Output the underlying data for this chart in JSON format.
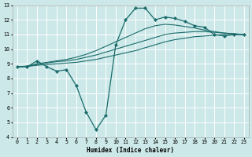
{
  "xlabel": "Humidex (Indice chaleur)",
  "bg_color": "#cce8e8",
  "grid_color": "#ffffff",
  "line_color": "#1a6b6b",
  "xlim": [
    -0.5,
    23.5
  ],
  "ylim": [
    4,
    13
  ],
  "xticks": [
    0,
    1,
    2,
    3,
    4,
    5,
    6,
    7,
    8,
    9,
    10,
    11,
    12,
    13,
    14,
    15,
    16,
    17,
    18,
    19,
    20,
    21,
    22,
    23
  ],
  "yticks": [
    4,
    5,
    6,
    7,
    8,
    9,
    10,
    11,
    12,
    13
  ],
  "line_main": {
    "x": [
      0,
      1,
      2,
      3,
      4,
      5,
      6,
      7,
      8,
      9,
      10,
      11,
      12,
      13,
      14,
      15,
      16,
      17,
      18,
      19,
      20,
      21,
      22,
      23
    ],
    "y": [
      8.8,
      8.8,
      9.2,
      8.8,
      8.5,
      8.6,
      7.5,
      5.7,
      4.5,
      5.5,
      10.3,
      12.0,
      12.8,
      12.8,
      12.0,
      12.2,
      12.1,
      11.9,
      11.6,
      11.5,
      11.0,
      10.9,
      11.0,
      11.0
    ]
  },
  "smooth_lines": [
    {
      "x": [
        0,
        1,
        2,
        3,
        4,
        5,
        6,
        7,
        8,
        9,
        10,
        11,
        12,
        13,
        14,
        15,
        16,
        17,
        18,
        19,
        20,
        21,
        22,
        23
      ],
      "y": [
        8.8,
        8.82,
        8.9,
        8.95,
        9.0,
        9.05,
        9.1,
        9.2,
        9.3,
        9.45,
        9.6,
        9.75,
        9.9,
        10.1,
        10.3,
        10.5,
        10.65,
        10.75,
        10.85,
        10.9,
        10.95,
        11.0,
        11.0,
        11.0
      ]
    },
    {
      "x": [
        0,
        1,
        2,
        3,
        4,
        5,
        6,
        7,
        8,
        9,
        10,
        11,
        12,
        13,
        14,
        15,
        16,
        17,
        18,
        19,
        20,
        21,
        22,
        23
      ],
      "y": [
        8.8,
        8.83,
        8.95,
        9.05,
        9.15,
        9.2,
        9.3,
        9.45,
        9.6,
        9.8,
        10.0,
        10.2,
        10.4,
        10.6,
        10.8,
        11.0,
        11.1,
        11.15,
        11.2,
        11.2,
        11.15,
        11.1,
        11.05,
        11.0
      ]
    },
    {
      "x": [
        0,
        1,
        2,
        3,
        4,
        5,
        6,
        7,
        8,
        9,
        10,
        11,
        12,
        13,
        14,
        15,
        16,
        17,
        18,
        19,
        20,
        21,
        22,
        23
      ],
      "y": [
        8.8,
        8.85,
        9.0,
        9.1,
        9.2,
        9.3,
        9.45,
        9.65,
        9.9,
        10.2,
        10.5,
        10.8,
        11.1,
        11.4,
        11.6,
        11.7,
        11.65,
        11.55,
        11.45,
        11.3,
        11.2,
        11.1,
        11.05,
        11.0
      ]
    }
  ]
}
